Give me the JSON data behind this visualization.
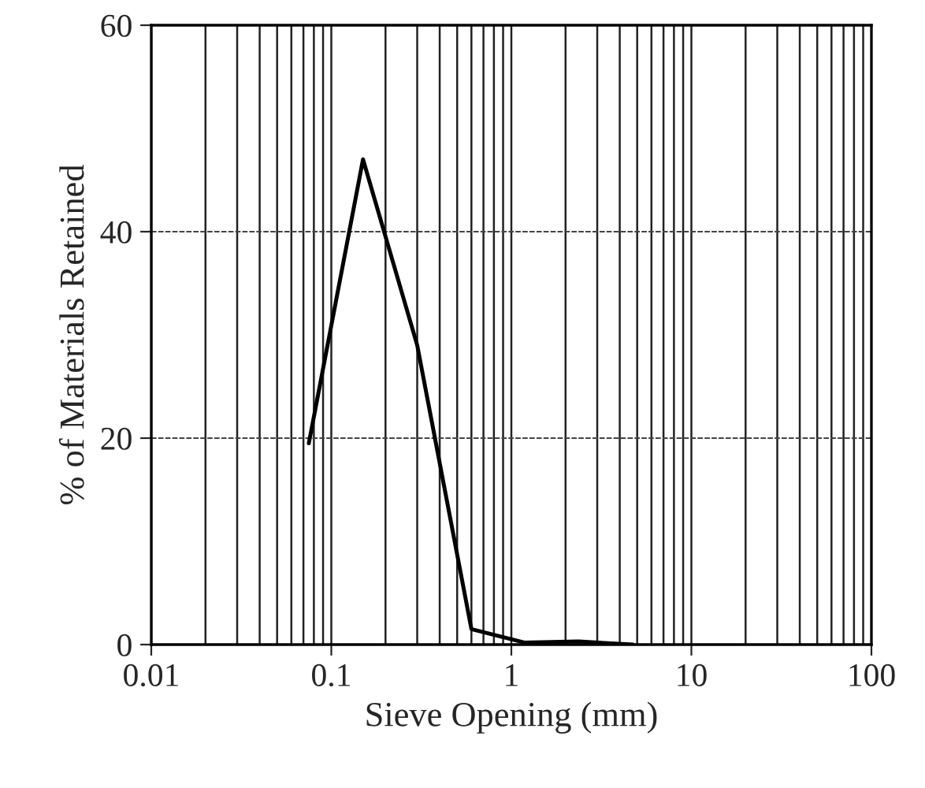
{
  "chart_data": {
    "type": "line",
    "xlabel": "Sieve Opening (mm)",
    "ylabel": "% of Materials Retained",
    "x": [
      0.075,
      0.15,
      0.3,
      0.6,
      1.18,
      2.36,
      4.75
    ],
    "series": [
      {
        "color": "#000000",
        "values": [
          19.5,
          47,
          29,
          1.5,
          0.2,
          0.3,
          0
        ]
      }
    ],
    "log": "x",
    "xlim": [
      0.01,
      100
    ],
    "xticks": [
      0.01,
      0.1,
      1,
      10,
      100
    ],
    "ylim": [
      0,
      60
    ],
    "yticks": [
      0,
      20,
      40,
      60
    ],
    "grid": true,
    "marker": "none",
    "line_style": "solid"
  }
}
